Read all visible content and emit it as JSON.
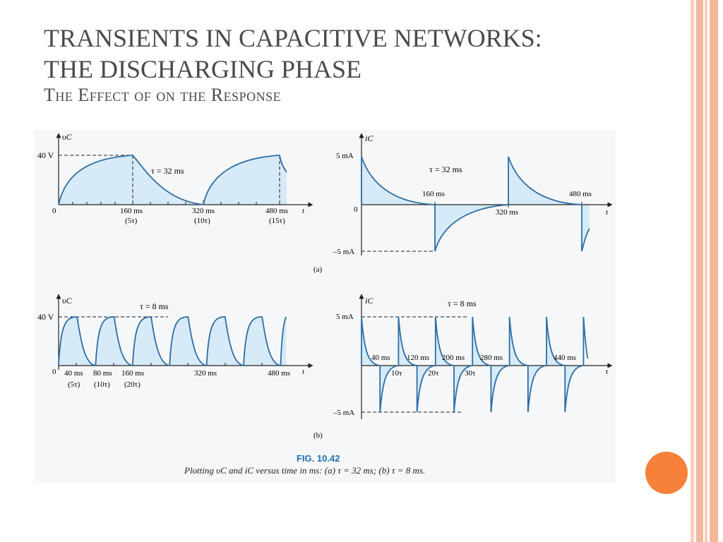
{
  "slide": {
    "title_lines": [
      "TRANSIENTS IN CAPACITIVE NETWORKS:",
      "THE DISCHARGING PHASE"
    ],
    "subtitle": "The Effect of  on the Response",
    "colors": {
      "accent_orange": "#f7813b",
      "stripe_salmon": "#f4b89b",
      "curve_blue": "#2e6ea6",
      "fill_blue": "#d6eaf7"
    }
  },
  "figure": {
    "caption_number": "FIG. 10.42",
    "caption_text": "Plotting υC and iC versus time in ms: (a) τ = 32 ms; (b) τ = 8 ms.",
    "panel_a_label": "(a)",
    "panel_b_label": "(b)",
    "a_vc": {
      "y_label": "υC",
      "x_label": "t",
      "v_level": "40 V",
      "origin": "0",
      "tau": "τ = 32 ms",
      "ticks": [
        "160 ms",
        "320 ms",
        "480 ms"
      ],
      "tick_sub": [
        "(5τ)",
        "(10τ)",
        "(15τ)"
      ]
    },
    "a_ic": {
      "y_label": "iC",
      "x_label": "t",
      "pos": "5 mA",
      "neg": "–5 mA",
      "origin": "0",
      "tau": "τ = 32 ms",
      "ticks_above": [
        "160 ms",
        "480 ms"
      ],
      "tick_below": "320 ms"
    },
    "b_vc": {
      "y_label": "υC",
      "x_label": "t",
      "v_level": "40 V",
      "origin": "0",
      "tau": "τ = 8 ms",
      "ticks": [
        "40 ms",
        "80 ms",
        "160 ms",
        "320 ms",
        "480 ms"
      ],
      "tick_sub": [
        "(5τ)",
        "(10τ)",
        "(20τ)"
      ]
    },
    "b_ic": {
      "y_label": "iC",
      "x_label": "t",
      "pos": "5 mA",
      "neg": "–5 mA",
      "tau": "τ = 8 ms",
      "ticks_above": [
        "40 ms",
        "120 ms",
        "200 ms",
        "280 ms",
        "440 ms"
      ],
      "ticks_below": [
        "10τ",
        "20τ",
        "30τ"
      ]
    }
  }
}
